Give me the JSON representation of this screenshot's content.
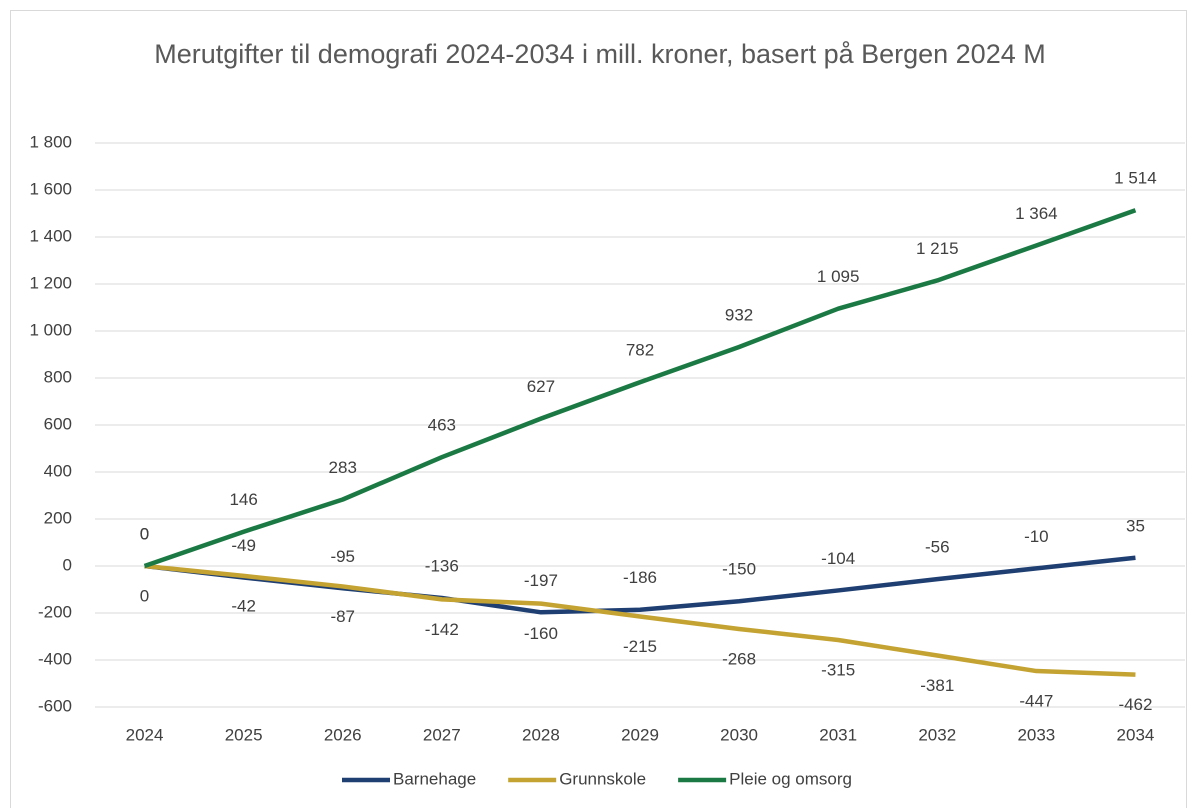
{
  "chart_data": {
    "type": "line",
    "title": "Merutgifter til demografi 2024-2034 i mill. kroner, basert på Bergen 2024 M",
    "categories": [
      "2024",
      "2025",
      "2026",
      "2027",
      "2028",
      "2029",
      "2030",
      "2031",
      "2032",
      "2033",
      "2034"
    ],
    "series": [
      {
        "name": "Barnehage",
        "color": "#1f3f72",
        "label_side": "above",
        "values": [
          0,
          -49,
          -95,
          -136,
          -197,
          -186,
          -150,
          -104,
          -56,
          -10,
          35
        ]
      },
      {
        "name": "Grunnskole",
        "color": "#c4a332",
        "label_side": "below",
        "values": [
          0,
          -42,
          -87,
          -142,
          -160,
          -215,
          -268,
          -315,
          -381,
          -447,
          -462
        ]
      },
      {
        "name": "Pleie og omsorg",
        "color": "#1b7a44",
        "label_side": "above",
        "values": [
          0,
          146,
          283,
          463,
          627,
          782,
          932,
          1095,
          1215,
          1364,
          1514
        ],
        "value_labels": [
          "0",
          "146",
          "283",
          "463",
          "627",
          "782",
          "932",
          "1 095",
          "1 215",
          "1 364",
          "1 514"
        ]
      }
    ],
    "ylim": [
      -600,
      1800
    ],
    "yticks": [
      -600,
      -400,
      -200,
      0,
      200,
      400,
      600,
      800,
      {
        "value": 1000,
        "label": "1 000"
      },
      {
        "value": 1200,
        "label": "1 200"
      },
      {
        "value": 1400,
        "label": "1 400"
      },
      {
        "value": 1600,
        "label": "1 600"
      },
      {
        "value": 1800,
        "label": "1 800"
      }
    ],
    "grid": true,
    "legend": "bottom"
  }
}
